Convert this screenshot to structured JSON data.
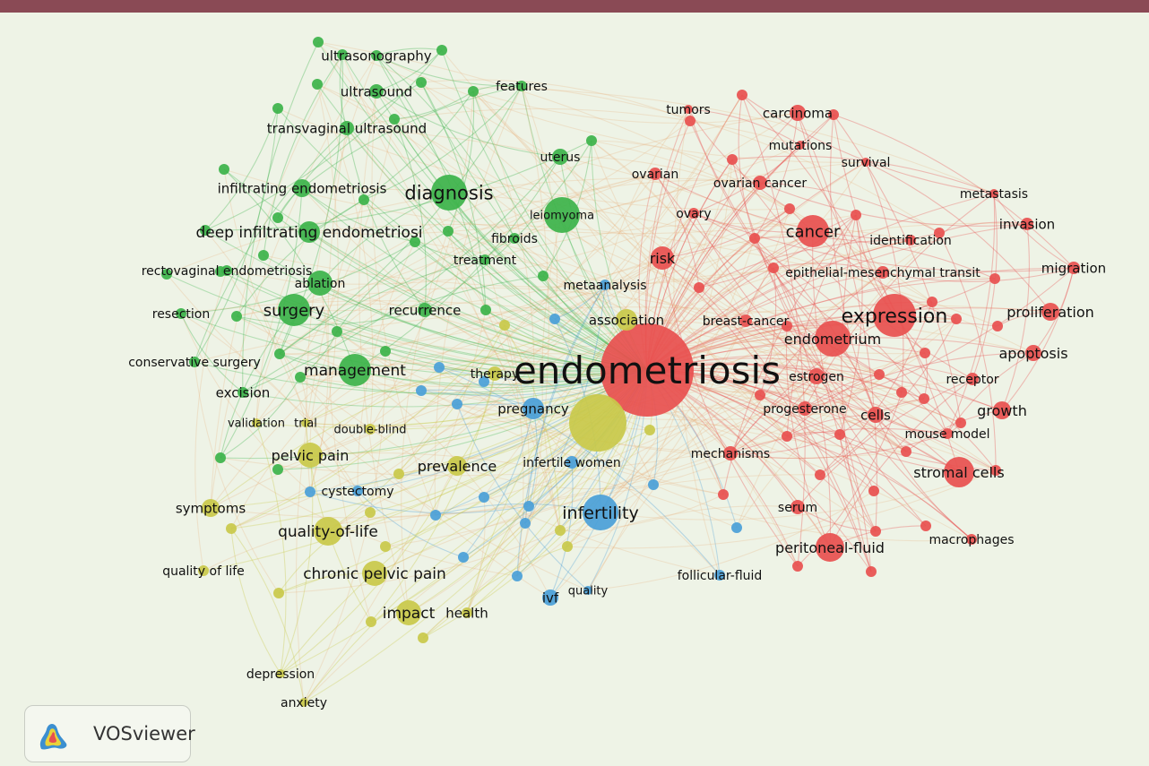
{
  "colors": {
    "top_bar": "#8a4a55",
    "background": "#eef3e6",
    "clusters": {
      "red": "#e8504f",
      "green": "#3cb34a",
      "blue": "#4a9fd8",
      "yellow": "#c9c94a"
    }
  },
  "brand": {
    "name": "VOSviewer",
    "logo_icon": "vosviewer-logo-icon"
  },
  "network": {
    "nodes": [
      {
        "id": "endometriosis",
        "label": "endometriosis",
        "cluster": "red",
        "weight": 100
      },
      {
        "id": "expression",
        "label": "expression",
        "cluster": "red",
        "weight": 22
      },
      {
        "id": "cancer",
        "label": "cancer",
        "cluster": "red",
        "weight": 14
      },
      {
        "id": "risk",
        "label": "risk",
        "cluster": "red",
        "weight": 12
      },
      {
        "id": "endometrium",
        "label": "endometrium",
        "cluster": "red",
        "weight": 16
      },
      {
        "id": "stromal-cells",
        "label": "stromal cells",
        "cluster": "red",
        "weight": 14
      },
      {
        "id": "peritoneal-fluid",
        "label": "peritoneal-fluid",
        "cluster": "red",
        "weight": 14
      },
      {
        "id": "proliferation",
        "label": "proliferation",
        "cluster": "red",
        "weight": 9
      },
      {
        "id": "apoptosis",
        "label": "apoptosis",
        "cluster": "red",
        "weight": 9
      },
      {
        "id": "growth",
        "label": "growth",
        "cluster": "red",
        "weight": 9
      },
      {
        "id": "cells",
        "label": "cells",
        "cluster": "red",
        "weight": 8
      },
      {
        "id": "receptor",
        "label": "receptor",
        "cluster": "red",
        "weight": 7
      },
      {
        "id": "migration",
        "label": "migration",
        "cluster": "red",
        "weight": 6
      },
      {
        "id": "invasion",
        "label": "invasion",
        "cluster": "red",
        "weight": 6
      },
      {
        "id": "metastasis",
        "label": "metastasis",
        "cluster": "red",
        "weight": 4
      },
      {
        "id": "carcinoma",
        "label": "carcinoma",
        "cluster": "red",
        "weight": 6
      },
      {
        "id": "tumors",
        "label": "tumors",
        "cluster": "red",
        "weight": 4
      },
      {
        "id": "mutations",
        "label": "mutations",
        "cluster": "red",
        "weight": 4
      },
      {
        "id": "survival",
        "label": "survival",
        "cluster": "red",
        "weight": 4
      },
      {
        "id": "ovarian",
        "label": "ovarian",
        "cluster": "red",
        "weight": 6
      },
      {
        "id": "ovarian-cancer",
        "label": "ovarian cancer",
        "cluster": "red",
        "weight": 6
      },
      {
        "id": "ovary",
        "label": "ovary",
        "cluster": "red",
        "weight": 5
      },
      {
        "id": "identification",
        "label": "identification",
        "cluster": "red",
        "weight": 5
      },
      {
        "id": "emt",
        "label": "epithelial-mesenchymal transit",
        "cluster": "red",
        "weight": 6
      },
      {
        "id": "breast-cancer",
        "label": "breast-cancer",
        "cluster": "red",
        "weight": 5
      },
      {
        "id": "estrogen",
        "label": "estrogen",
        "cluster": "red",
        "weight": 7
      },
      {
        "id": "progesterone",
        "label": "progesterone",
        "cluster": "red",
        "weight": 6
      },
      {
        "id": "mouse-model",
        "label": "mouse model",
        "cluster": "red",
        "weight": 5
      },
      {
        "id": "mechanisms",
        "label": "mechanisms",
        "cluster": "red",
        "weight": 6
      },
      {
        "id": "serum",
        "label": "serum",
        "cluster": "red",
        "weight": 6
      },
      {
        "id": "macrophages",
        "label": "macrophages",
        "cluster": "red",
        "weight": 5
      },
      {
        "id": "diagnosis",
        "label": "diagnosis",
        "cluster": "green",
        "weight": 18
      },
      {
        "id": "surgery",
        "label": "surgery",
        "cluster": "green",
        "weight": 16
      },
      {
        "id": "management",
        "label": "management",
        "cluster": "green",
        "weight": 16
      },
      {
        "id": "deep-infiltrating",
        "label": "deep infiltrating endometriosi",
        "cluster": "green",
        "weight": 10
      },
      {
        "id": "infiltrating",
        "label": "infiltrating endometriosis",
        "cluster": "green",
        "weight": 8
      },
      {
        "id": "leiomyoma",
        "label": "leiomyoma",
        "cluster": "green",
        "weight": 14
      },
      {
        "id": "uterus",
        "label": "uterus",
        "cluster": "green",
        "weight": 7
      },
      {
        "id": "fibroids",
        "label": "fibroids",
        "cluster": "green",
        "weight": 5
      },
      {
        "id": "treatment",
        "label": "treatment",
        "cluster": "green",
        "weight": 5
      },
      {
        "id": "ultrasonography",
        "label": "ultrasonography",
        "cluster": "green",
        "weight": 5
      },
      {
        "id": "ultrasound",
        "label": "ultrasound",
        "cluster": "green",
        "weight": 6
      },
      {
        "id": "transvaginal",
        "label": "transvaginal ultrasound",
        "cluster": "green",
        "weight": 6
      },
      {
        "id": "features",
        "label": "features",
        "cluster": "green",
        "weight": 4
      },
      {
        "id": "rectovaginal",
        "label": "rectovaginal endometriosis",
        "cluster": "green",
        "weight": 5
      },
      {
        "id": "ablation",
        "label": "ablation",
        "cluster": "green",
        "weight": 9
      },
      {
        "id": "recurrence",
        "label": "recurrence",
        "cluster": "green",
        "weight": 6
      },
      {
        "id": "resection",
        "label": "resection",
        "cluster": "green",
        "weight": 5
      },
      {
        "id": "conservative",
        "label": "conservative surgery",
        "cluster": "green",
        "weight": 5
      },
      {
        "id": "excision",
        "label": "excision",
        "cluster": "green",
        "weight": 5
      },
      {
        "id": "association",
        "label": "association",
        "cluster": "yellow",
        "weight": 10
      },
      {
        "id": "pregnancy-y",
        "label": "",
        "cluster": "yellow",
        "weight": 26
      },
      {
        "id": "pelvic-pain",
        "label": "pelvic pain",
        "cluster": "yellow",
        "weight": 12
      },
      {
        "id": "prevalence",
        "label": "prevalence",
        "cluster": "yellow",
        "weight": 9
      },
      {
        "id": "quality-of-life",
        "label": "quality-of-life",
        "cluster": "yellow",
        "weight": 14
      },
      {
        "id": "chronic-pelvic-pain",
        "label": "chronic pelvic pain",
        "cluster": "yellow",
        "weight": 12
      },
      {
        "id": "symptoms",
        "label": "symptoms",
        "cluster": "yellow",
        "weight": 8
      },
      {
        "id": "quality-of-life-2",
        "label": "quality of life",
        "cluster": "yellow",
        "weight": 5
      },
      {
        "id": "impact",
        "label": "impact",
        "cluster": "yellow",
        "weight": 12
      },
      {
        "id": "health",
        "label": "health",
        "cluster": "yellow",
        "weight": 5
      },
      {
        "id": "depression",
        "label": "depression",
        "cluster": "yellow",
        "weight": 4
      },
      {
        "id": "anxiety",
        "label": "anxiety",
        "cluster": "yellow",
        "weight": 4
      },
      {
        "id": "validation",
        "label": "validation",
        "cluster": "yellow",
        "weight": 4
      },
      {
        "id": "trial",
        "label": "trial",
        "cluster": "yellow",
        "weight": 4
      },
      {
        "id": "double-blind",
        "label": "double-blind",
        "cluster": "yellow",
        "weight": 5
      },
      {
        "id": "therapy",
        "label": "therapy",
        "cluster": "yellow",
        "weight": 6
      },
      {
        "id": "infertility",
        "label": "infertility",
        "cluster": "blue",
        "weight": 20
      },
      {
        "id": "pregnancy",
        "label": "pregnancy",
        "cluster": "blue",
        "weight": 10
      },
      {
        "id": "infertile-women",
        "label": "infertile women",
        "cluster": "blue",
        "weight": 6
      },
      {
        "id": "cystectomy",
        "label": "cystectomy",
        "cluster": "blue",
        "weight": 5
      },
      {
        "id": "ivf",
        "label": "ivf",
        "cluster": "blue",
        "weight": 7
      },
      {
        "id": "quality",
        "label": "quality",
        "cluster": "blue",
        "weight": 4
      },
      {
        "id": "follicular-fluid",
        "label": "follicular-fluid",
        "cluster": "blue",
        "weight": 5
      },
      {
        "id": "metaanalysis",
        "label": "metaanalysis",
        "cluster": "blue",
        "weight": 5
      }
    ],
    "extra_dots": 64
  }
}
